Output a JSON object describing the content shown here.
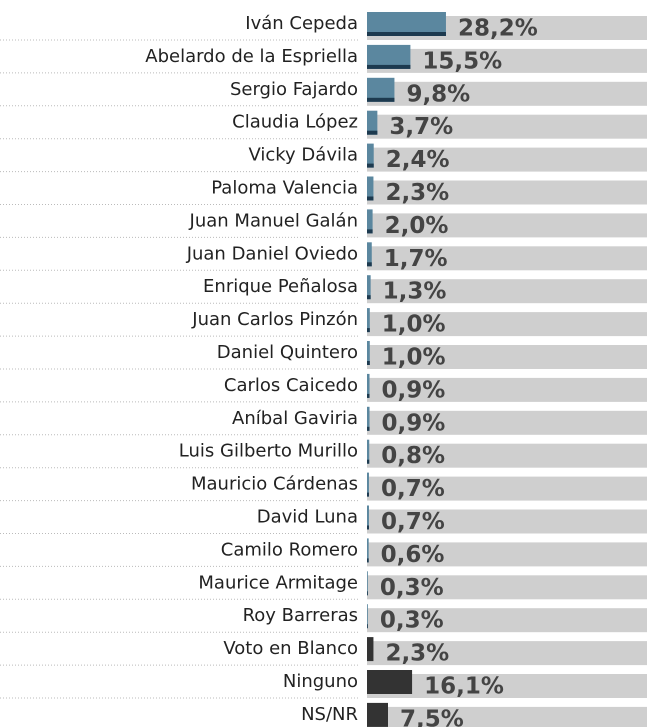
{
  "chart_data": {
    "type": "hbar",
    "categories": [
      "Iván Cepeda",
      "Abelardo de la Espriella",
      "Sergio Fajardo",
      "Claudia López",
      "Vicky Dávila",
      "Paloma Valencia",
      "Juan Manuel Galán",
      "Juan Daniel Oviedo",
      "Enrique Peñalosa",
      "Juan Carlos Pinzón",
      "Daniel Quintero",
      "Carlos Caicedo",
      "Aníbal Gaviria",
      "Luis Gilberto Murillo",
      "Mauricio Cárdenas",
      "David Luna",
      "Camilo Romero",
      "Maurice Armitage",
      "Roy Barreras",
      "Voto en Blanco",
      "Ninguno",
      "NS/NR"
    ],
    "values": [
      28.2,
      15.5,
      9.8,
      3.7,
      2.4,
      2.3,
      2.0,
      1.7,
      1.3,
      1.0,
      1.0,
      0.9,
      0.9,
      0.8,
      0.7,
      0.7,
      0.6,
      0.3,
      0.3,
      2.3,
      16.1,
      7.5
    ],
    "value_labels": [
      "28,2%",
      "15,5%",
      "9,8%",
      "3,7%",
      "2,4%",
      "2,3%",
      "2,0%",
      "1,7%",
      "1,3%",
      "1,0%",
      "1,0%",
      "0,9%",
      "0,9%",
      "0,8%",
      "0,7%",
      "0,7%",
      "0,6%",
      "0,3%",
      "0,3%",
      "2,3%",
      "16,1%",
      "7,5%"
    ],
    "colors": [
      "#5b879f",
      "#5b879f",
      "#5b879f",
      "#5b879f",
      "#5b879f",
      "#5b879f",
      "#5b879f",
      "#5b879f",
      "#5b879f",
      "#5b879f",
      "#5b879f",
      "#5b879f",
      "#5b879f",
      "#5b879f",
      "#5b879f",
      "#5b879f",
      "#5b879f",
      "#5b879f",
      "#5b879f",
      "#333333",
      "#333333",
      "#333333"
    ],
    "xlim": [
      0,
      100
    ]
  }
}
